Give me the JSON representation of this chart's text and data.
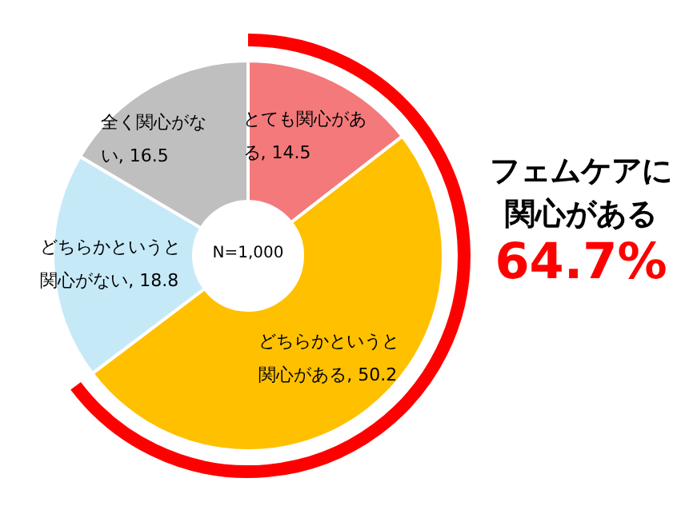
{
  "chart_data": {
    "type": "donut",
    "categories": [
      "とても関心がある",
      "どちらかというと関心がある",
      "どちらかというと関心がない",
      "全く関心がない"
    ],
    "values": [
      14.5,
      50.2,
      18.8,
      16.5
    ],
    "colors": [
      "#f4797b",
      "#ffc000",
      "#c6e9f8",
      "#bfbfbf"
    ],
    "value_labels": [
      ", 14.5",
      ", 50.2",
      ", 18.8",
      ", 16.5"
    ],
    "annotations": [
      "N=1,000",
      "フェムケアに関心がある",
      "64.7%"
    ]
  }
}
